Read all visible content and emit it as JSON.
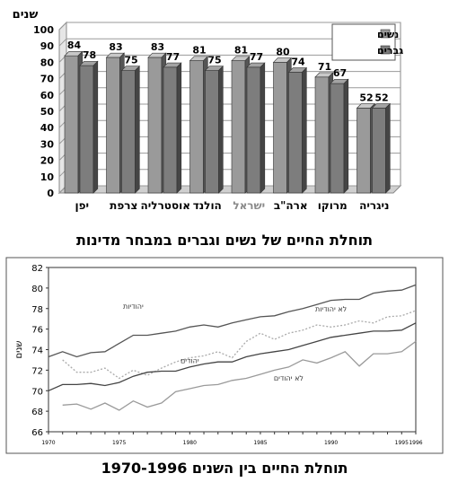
{
  "chart_data": [
    {
      "type": "bar",
      "title": "תוחלת החיים של נשים וגברים במבחר מדינות",
      "ylabel": "שנים",
      "ylim": [
        0,
        100
      ],
      "yticks": [
        0,
        10,
        20,
        30,
        40,
        50,
        60,
        70,
        80,
        90,
        100
      ],
      "categories": [
        "יפן",
        "צרפת",
        "אוסטרליה",
        "הולנד",
        "ישראל",
        "ארה\"ב",
        "מרוקו",
        "ניגריה"
      ],
      "series": [
        {
          "name": "נשים",
          "color": "#9a9a9a",
          "values": [
            84,
            83,
            83,
            81,
            81,
            80,
            71,
            52
          ]
        },
        {
          "name": "גברים",
          "color": "#7d7d7d",
          "values": [
            78,
            75,
            77,
            75,
            77,
            74,
            67,
            52
          ]
        }
      ],
      "legend": "top-right",
      "grid": true
    },
    {
      "type": "line",
      "title": "תוחלת החיים בין השנים 1970-1996",
      "ylabel": "שנים",
      "ylim": [
        66,
        82
      ],
      "yticks": [
        66,
        68,
        70,
        72,
        74,
        76,
        78,
        80,
        82
      ],
      "xlim": [
        1970,
        1996
      ],
      "xticks": [
        1970,
        1975,
        1980,
        1985,
        1990,
        1995,
        1996
      ],
      "x": [
        1970,
        1971,
        1972,
        1973,
        1974,
        1975,
        1976,
        1977,
        1978,
        1979,
        1980,
        1981,
        1982,
        1983,
        1984,
        1985,
        1986,
        1987,
        1988,
        1989,
        1990,
        1991,
        1992,
        1993,
        1994,
        1995,
        1996
      ],
      "series": [
        {
          "label": "יהודיות",
          "style": "solid",
          "color": "#555555",
          "values": [
            73.3,
            73.8,
            73.3,
            73.7,
            73.8,
            74.6,
            75.4,
            75.4,
            75.6,
            75.8,
            76.2,
            76.4,
            76.2,
            76.6,
            76.9,
            77.2,
            77.3,
            77.7,
            78.0,
            78.4,
            78.8,
            78.9,
            78.9,
            79.5,
            79.7,
            79.8,
            80.3
          ]
        },
        {
          "label": "לא יהודיות",
          "style": "dotted",
          "color": "#aaaaaa",
          "values": [
            null,
            73.0,
            71.8,
            71.8,
            72.2,
            71.2,
            72.0,
            71.5,
            72.2,
            72.8,
            73.2,
            73.4,
            73.8,
            73.2,
            74.8,
            75.6,
            75.0,
            75.6,
            75.9,
            76.4,
            76.2,
            76.4,
            76.8,
            76.6,
            77.2,
            77.3,
            77.8
          ]
        },
        {
          "label": "יהודים",
          "style": "solid",
          "color": "#444444",
          "values": [
            70.0,
            70.6,
            70.6,
            70.7,
            70.5,
            70.8,
            71.4,
            71.8,
            71.9,
            71.9,
            72.3,
            72.6,
            72.8,
            72.8,
            73.3,
            73.6,
            73.8,
            74.0,
            74.4,
            74.8,
            75.2,
            75.4,
            75.6,
            75.8,
            75.8,
            75.9,
            76.6
          ]
        },
        {
          "label": "לא יהודים",
          "style": "solid",
          "color": "#9a9a9a",
          "values": [
            null,
            68.6,
            68.7,
            68.2,
            68.8,
            68.1,
            69.0,
            68.4,
            68.8,
            69.9,
            70.2,
            70.5,
            70.6,
            71.0,
            71.2,
            71.6,
            72.0,
            72.3,
            73.0,
            72.7,
            73.2,
            73.8,
            72.4,
            73.6,
            73.6,
            73.8,
            74.8
          ]
        }
      ],
      "grid": false
    }
  ]
}
